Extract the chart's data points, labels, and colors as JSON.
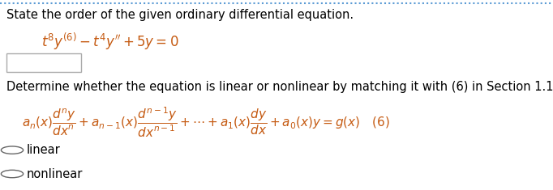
{
  "bg_color": "#ffffff",
  "top_border_color": "#5b9bd5",
  "title_text": "State the order of the given ordinary differential equation.",
  "radio1": "linear",
  "radio2": "nonlinear",
  "font_color": "#000000",
  "red_color": "#c55a11",
  "title_fontsize": 10.5,
  "eq_fontsize": 12,
  "formula_fontsize": 11,
  "radio_fontsize": 10.5,
  "determine_fontsize": 10.5
}
